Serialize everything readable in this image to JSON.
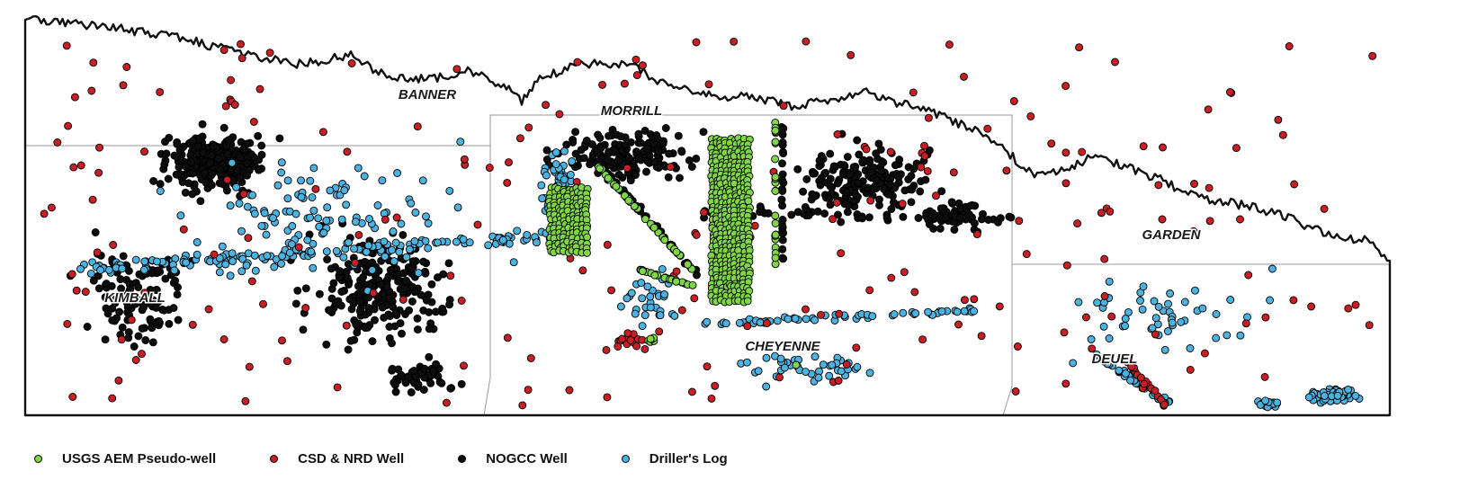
{
  "map": {
    "counties": [
      {
        "name": "BANNER",
        "label_x": 475,
        "label_y": 110
      },
      {
        "name": "MORRILL",
        "label_x": 702,
        "label_y": 128
      },
      {
        "name": "KIMBALL",
        "label_x": 150,
        "label_y": 336
      },
      {
        "name": "CHEYENNE",
        "label_x": 870,
        "label_y": 390
      },
      {
        "name": "GARDEN",
        "label_x": 1302,
        "label_y": 266
      },
      {
        "name": "DEUEL",
        "label_x": 1239,
        "label_y": 404
      }
    ],
    "colors": {
      "usgs": "#7fd646",
      "csd": "#c81f25",
      "nogcc": "#0d0d0d",
      "driller": "#4cb3e0",
      "boundary": "#111111",
      "county_line": "#9a9a9a"
    }
  },
  "legend": {
    "items": [
      {
        "key": "usgs",
        "label": "USGS AEM Pseudo-well",
        "color": "#7fd646"
      },
      {
        "key": "csd",
        "label": "CSD & NRD Well",
        "color": "#c81f25"
      },
      {
        "key": "nogcc",
        "label": "NOGCC Well",
        "color": "#0d0d0d"
      },
      {
        "key": "driller",
        "label": "Driller's Log",
        "color": "#4cb3e0"
      }
    ]
  }
}
